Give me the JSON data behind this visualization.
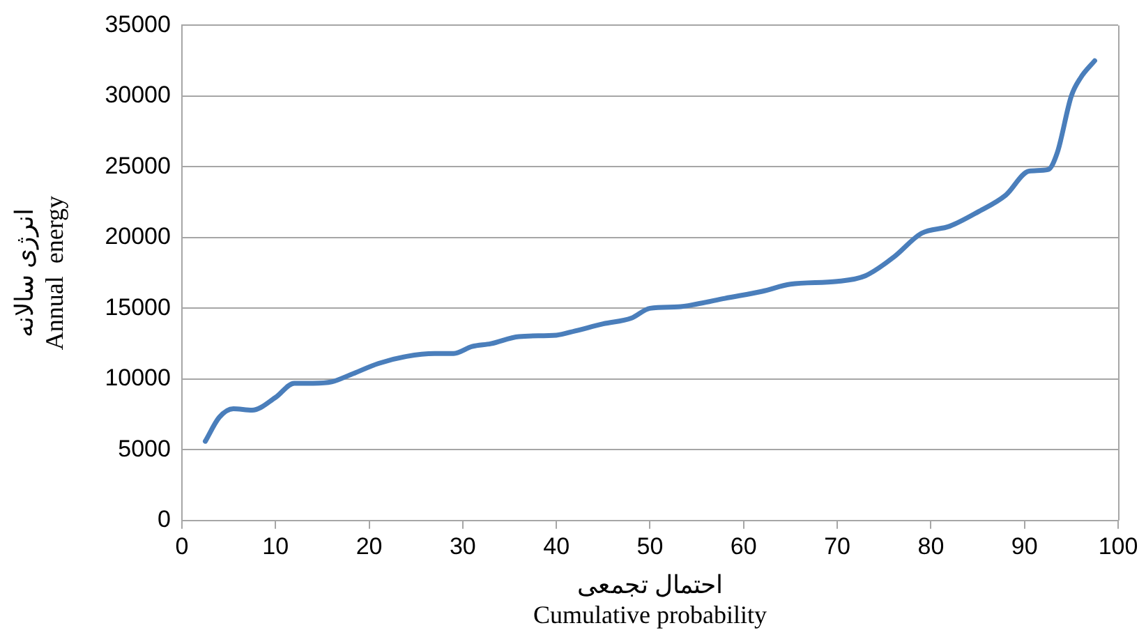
{
  "chart_data": {
    "type": "line",
    "xlabel": "احتمال تجمعی\nCumulative probability",
    "ylabel": "انرژی سالانه\nAnnual  energy",
    "x": [
      2.5,
      4,
      5.5,
      7.5,
      10,
      12,
      14,
      16,
      18,
      21,
      24,
      27,
      29,
      31,
      33,
      36,
      40,
      42,
      45,
      48,
      50,
      53,
      55,
      58,
      62,
      65,
      70,
      73,
      76,
      79,
      82,
      85,
      88,
      90.5,
      92.5,
      93.5,
      95,
      96,
      97.5
    ],
    "series": [
      {
        "color": "#4a7ebb",
        "values": [
          5600,
          7300,
          7900,
          7800,
          8700,
          9700,
          9700,
          9800,
          10300,
          11100,
          11600,
          11800,
          11800,
          12300,
          12500,
          13000,
          13100,
          13400,
          13900,
          14300,
          15000,
          15100,
          15300,
          15700,
          16200,
          16700,
          16900,
          17300,
          18600,
          20300,
          20800,
          21800,
          23000,
          24700,
          24800,
          26000,
          30000,
          31300,
          32500
        ]
      }
    ],
    "xlim": [
      0,
      100
    ],
    "xticks": [
      0,
      10,
      20,
      30,
      40,
      50,
      60,
      70,
      80,
      90,
      100
    ],
    "ylim": [
      0,
      35000
    ],
    "yticks": [
      0,
      5000,
      10000,
      15000,
      20000,
      25000,
      30000,
      35000
    ],
    "grid": "y",
    "legend": false,
    "marker": "none",
    "line_style": "solid"
  }
}
